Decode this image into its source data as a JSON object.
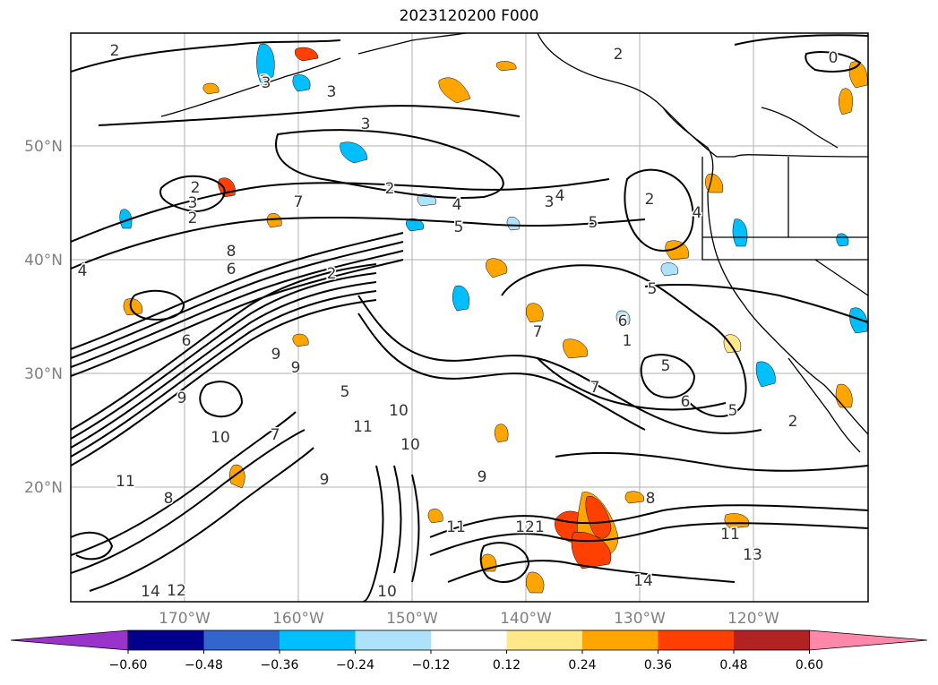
{
  "title": "2023120200 F000",
  "lat_labels": [
    "50°N",
    "40°N",
    "30°N",
    "20°N"
  ],
  "lon_labels": [
    "170°W",
    "160°W",
    "150°W",
    "140°W",
    "130°W",
    "120°W"
  ],
  "colorbar": {
    "ticks": [
      "-0.60",
      "-0.48",
      "-0.36",
      "-0.24",
      "-0.12",
      "0.12",
      "0.24",
      "0.36",
      "0.48",
      "0.60"
    ],
    "colors": [
      "#9933cc",
      "#00008b",
      "#3366cc",
      "#00bfff",
      "#aee2fa",
      "#ffffff",
      "#ffe88a",
      "#ffa500",
      "#ff4000",
      "#b22222",
      "#ff88aa"
    ]
  },
  "contour_labels": [
    "2",
    "3",
    "3",
    "3",
    "2",
    "2",
    "4",
    "3",
    "4",
    "5",
    "2",
    "4",
    "2",
    "3",
    "2",
    "6",
    "5",
    "7",
    "5",
    "6",
    "7",
    "5",
    "8",
    "9",
    "9",
    "9",
    "8",
    "9",
    "11",
    "10",
    "10",
    "10",
    "11",
    "11",
    "10",
    "12",
    "11",
    "13",
    "14",
    "11",
    "12",
    "14",
    "5",
    "6",
    "7",
    "3",
    "6",
    "5",
    "2",
    "9",
    "8",
    "1",
    "2",
    "4",
    "7",
    "0"
  ],
  "colors": {
    "land_line": "#000000",
    "contour": "#000000",
    "grid": "#b0b0b0",
    "tick_text": "#808080"
  }
}
